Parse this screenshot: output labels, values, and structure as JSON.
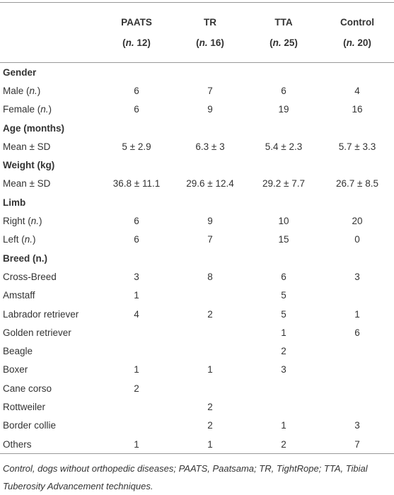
{
  "table": {
    "headers": [
      {
        "name": "PAATS",
        "n": [
          "(",
          "n.",
          " 12)"
        ]
      },
      {
        "name": "TR",
        "n": [
          "(",
          "n.",
          " 16)"
        ]
      },
      {
        "name": "TTA",
        "n": [
          "(",
          "n.",
          " 25)"
        ]
      },
      {
        "name": "Control",
        "n": [
          "(",
          "n.",
          " 20)"
        ]
      }
    ],
    "sections": [
      {
        "title": "Gender",
        "rows": [
          {
            "label": [
              "Male (",
              "n.",
              ")"
            ],
            "cells": [
              "6",
              "7",
              "6",
              "4"
            ]
          },
          {
            "label": [
              "Female (",
              "n.",
              ")"
            ],
            "cells": [
              "6",
              "9",
              "19",
              "16"
            ]
          }
        ]
      },
      {
        "title": "Age (months)",
        "rows": [
          {
            "label": [
              "Mean ± SD"
            ],
            "cells": [
              "5 ± 2.9",
              "6.3 ± 3",
              "5.4 ± 2.3",
              "5.7 ± 3.3"
            ]
          }
        ]
      },
      {
        "title": "Weight (kg)",
        "rows": [
          {
            "label": [
              "Mean ± SD"
            ],
            "cells": [
              "36.8 ± 11.1",
              "29.6 ± 12.4",
              "29.2 ± 7.7",
              "26.7 ± 8.5"
            ]
          }
        ]
      },
      {
        "title": "Limb",
        "rows": [
          {
            "label": [
              "Right (",
              "n.",
              ")"
            ],
            "cells": [
              "6",
              "9",
              "10",
              "20"
            ]
          },
          {
            "label": [
              "Left (",
              "n.",
              ")"
            ],
            "cells": [
              "6",
              "7",
              "15",
              "0"
            ]
          }
        ]
      },
      {
        "title": "Breed (n.)",
        "rows": [
          {
            "label": [
              "Cross-Breed"
            ],
            "cells": [
              "3",
              "8",
              "6",
              "3"
            ]
          },
          {
            "label": [
              "Amstaff"
            ],
            "cells": [
              "1",
              null,
              "5",
              null
            ]
          },
          {
            "label": [
              "Labrador retriever"
            ],
            "cells": [
              "4",
              "2",
              "5",
              "1"
            ]
          },
          {
            "label": [
              "Golden retriever"
            ],
            "cells": [
              null,
              null,
              "1",
              "6"
            ]
          },
          {
            "label": [
              "Beagle"
            ],
            "cells": [
              null,
              null,
              "2",
              null
            ]
          },
          {
            "label": [
              "Boxer"
            ],
            "cells": [
              "1",
              "1",
              "3",
              null
            ]
          },
          {
            "label": [
              "Cane corso"
            ],
            "cells": [
              "2",
              null,
              null,
              null
            ]
          },
          {
            "label": [
              "Rottweiler"
            ],
            "cells": [
              null,
              "2",
              null,
              null
            ]
          },
          {
            "label": [
              "Border collie"
            ],
            "cells": [
              null,
              "2",
              "1",
              "3"
            ]
          },
          {
            "label": [
              "Others"
            ],
            "cells": [
              "1",
              "1",
              "2",
              "7"
            ]
          }
        ]
      }
    ],
    "footnote": "Control, dogs without orthopedic diseases; PAATS, Paatsama; TR, TightRope; TTA, Tibial Tuberosity Advancement techniques."
  }
}
